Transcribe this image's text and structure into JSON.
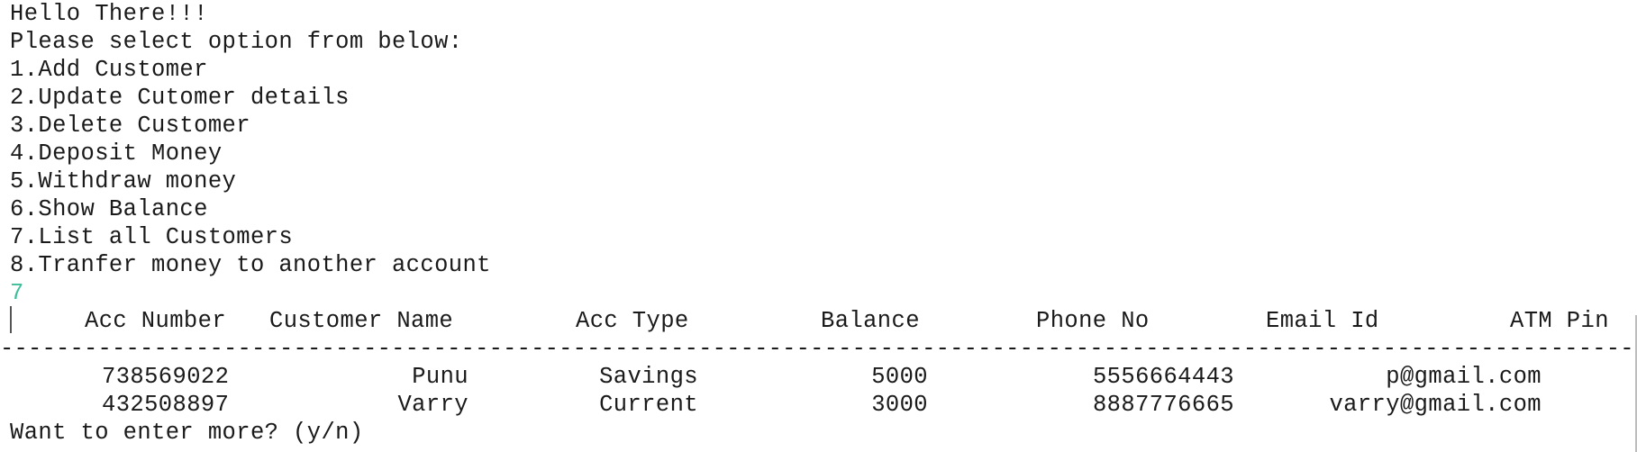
{
  "menu": {
    "greeting": "Hello There!!!",
    "prompt": "Please select option from below:",
    "options": [
      "1.Add Customer",
      "2.Update Cutomer details",
      "3.Delete Customer",
      "4.Deposit Money",
      "5.Withdraw money",
      "6.Show Balance",
      "7.List all Customers",
      "8.Tranfer money to another account"
    ]
  },
  "user_input": "7",
  "table": {
    "headers": [
      "Acc Number",
      "Customer Name",
      "Acc Type",
      "Balance",
      "Phone No",
      "Email Id",
      "ATM Pin"
    ],
    "separator": "---------------------------------------------------------------------------------------------------------------------------",
    "rows": [
      [
        "738569022",
        "Punu",
        "Savings",
        "5000",
        "5556664443",
        "p@gmail.com"
      ],
      [
        "432508897",
        "Varry",
        "Current",
        "3000",
        "8887776665",
        "varry@gmail.com"
      ]
    ]
  },
  "footer_prompt": "Want to enter more? (y/n)",
  "colors": {
    "text": "#1a1a1a",
    "input_echo": "#3cbf99",
    "background": "#ffffff"
  }
}
